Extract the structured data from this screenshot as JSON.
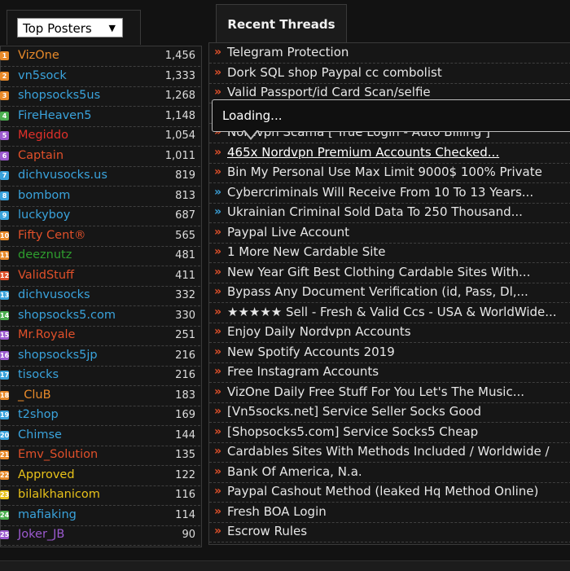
{
  "left_panel": {
    "select_value": "Top Posters",
    "posters": [
      {
        "rank": "1",
        "name": "VizOne",
        "count": "1,456",
        "color": "#e88a2a",
        "badge": "#e88a2a"
      },
      {
        "rank": "2",
        "name": "vn5sock",
        "count": "1,333",
        "color": "#3aa3dc",
        "badge": "#e88a2a"
      },
      {
        "rank": "3",
        "name": "shopsocks5us",
        "count": "1,268",
        "color": "#3aa3dc",
        "badge": "#e88a2a"
      },
      {
        "rank": "4",
        "name": "FireHeaven5",
        "count": "1,148",
        "color": "#3aa3dc",
        "badge": "#4caf50"
      },
      {
        "rank": "5",
        "name": "Megiddo",
        "count": "1,054",
        "color": "#e0302a",
        "badge": "#9c5ad0"
      },
      {
        "rank": "6",
        "name": "Captain",
        "count": "1,011",
        "color": "#e0502a",
        "badge": "#9c5ad0"
      },
      {
        "rank": "7",
        "name": "dichvusocks.us",
        "count": "819",
        "color": "#3aa3dc",
        "badge": "#3aa3dc"
      },
      {
        "rank": "8",
        "name": "bombom",
        "count": "813",
        "color": "#3aa3dc",
        "badge": "#3aa3dc"
      },
      {
        "rank": "9",
        "name": "luckyboy",
        "count": "687",
        "color": "#3aa3dc",
        "badge": "#3aa3dc"
      },
      {
        "rank": "10",
        "name": "Fifty Cent®",
        "count": "565",
        "color": "#e0502a",
        "badge": "#e88a2a"
      },
      {
        "rank": "11",
        "name": "deeznutz",
        "count": "481",
        "color": "#2e9e2e",
        "badge": "#e88a2a"
      },
      {
        "rank": "12",
        "name": "ValidStuff",
        "count": "411",
        "color": "#e0502a",
        "badge": "#e0502a"
      },
      {
        "rank": "13",
        "name": "dichvusocks",
        "count": "332",
        "color": "#3aa3dc",
        "badge": "#3aa3dc"
      },
      {
        "rank": "14",
        "name": "shopsocks5.com",
        "count": "330",
        "color": "#3aa3dc",
        "badge": "#4caf50"
      },
      {
        "rank": "15",
        "name": "Mr.Royale",
        "count": "251",
        "color": "#e0502a",
        "badge": "#9c5ad0"
      },
      {
        "rank": "16",
        "name": "shopsocks5jp",
        "count": "216",
        "color": "#3aa3dc",
        "badge": "#9c5ad0"
      },
      {
        "rank": "17",
        "name": "tisocks",
        "count": "216",
        "color": "#3aa3dc",
        "badge": "#3aa3dc"
      },
      {
        "rank": "18",
        "name": "_CluB",
        "count": "183",
        "color": "#e88a2a",
        "badge": "#e88a2a"
      },
      {
        "rank": "19",
        "name": "t2shop",
        "count": "169",
        "color": "#3aa3dc",
        "badge": "#3aa3dc"
      },
      {
        "rank": "20",
        "name": "Chimse",
        "count": "144",
        "color": "#3aa3dc",
        "badge": "#3aa3dc"
      },
      {
        "rank": "21",
        "name": "Emv_Solution",
        "count": "135",
        "color": "#e0502a",
        "badge": "#e88a2a"
      },
      {
        "rank": "22",
        "name": "Approved",
        "count": "122",
        "color": "#e8c21a",
        "badge": "#e88a2a"
      },
      {
        "rank": "23",
        "name": "bilalkhanicom",
        "count": "116",
        "color": "#e8c21a",
        "badge": "#e8c21a"
      },
      {
        "rank": "24",
        "name": "mafiaking",
        "count": "114",
        "color": "#3aa3dc",
        "badge": "#4caf50"
      },
      {
        "rank": "25",
        "name": "Joker_JB",
        "count": "90",
        "color": "#9c5ad0",
        "badge": "#9c5ad0"
      }
    ]
  },
  "right_panel": {
    "tab_label": "Recent Threads",
    "tooltip": "Loading...",
    "threads": [
      {
        "title": "Telegram Protection",
        "arrow": "red",
        "link": false
      },
      {
        "title": "Dork SQL shop Paypal cc combolist",
        "arrow": "red",
        "link": false
      },
      {
        "title": "Valid Passport/id Card Scan/selfie",
        "arrow": "red",
        "link": false
      },
      {
        "title": "",
        "arrow": "red",
        "link": false
      },
      {
        "title": "Nordvpn Scama [ True Login - Auto Billing ]",
        "arrow": "red",
        "link": false
      },
      {
        "title": "465x Nordvpn Premium Accounts Checked...",
        "arrow": "red",
        "link": true
      },
      {
        "title": "Bin My Personal Use Max Limit 9000$ 100% Private",
        "arrow": "red",
        "link": false
      },
      {
        "title": "Cybercriminals Will Receive From 10 To 13 Years...",
        "arrow": "blue",
        "link": false
      },
      {
        "title": "Ukrainian Criminal Sold Data To 250 Thousand...",
        "arrow": "blue",
        "link": false
      },
      {
        "title": "Paypal Live Account",
        "arrow": "red",
        "link": false
      },
      {
        "title": "1 More New Cardable Site",
        "arrow": "red",
        "link": false
      },
      {
        "title": "New Year Gift Best Clothing Cardable Sites With...",
        "arrow": "red",
        "link": false
      },
      {
        "title": "Bypass Any Document Verification (id, Pass, Dl,...",
        "arrow": "red",
        "link": false
      },
      {
        "title": "★★★★★ Sell - Fresh & Valid Ccs - USA & WorldWide...",
        "arrow": "red",
        "link": false
      },
      {
        "title": "Enjoy Daily Nordvpn Accounts",
        "arrow": "red",
        "link": false
      },
      {
        "title": "New Spotify Accounts 2019",
        "arrow": "red",
        "link": false
      },
      {
        "title": "Free Instagram Accounts",
        "arrow": "red",
        "link": false
      },
      {
        "title": "VizOne Daily Free Stuff For You Let's The Music...",
        "arrow": "red",
        "link": false
      },
      {
        "title": "[Vn5socks.net] Service Seller Socks Good",
        "arrow": "red",
        "link": false
      },
      {
        "title": "[Shopsocks5.com] Service Socks5 Cheap",
        "arrow": "red",
        "link": false
      },
      {
        "title": "Cardables Sites With Methods Included / Worldwide /",
        "arrow": "red",
        "link": false
      },
      {
        "title": "Bank Of America, N.a.",
        "arrow": "red",
        "link": false
      },
      {
        "title": "Paypal Cashout Method (leaked Hq Method Online)",
        "arrow": "red",
        "link": false
      },
      {
        "title": "Fresh BOA Login",
        "arrow": "red",
        "link": false
      },
      {
        "title": "Escrow Rules",
        "arrow": "red",
        "link": false
      }
    ]
  }
}
